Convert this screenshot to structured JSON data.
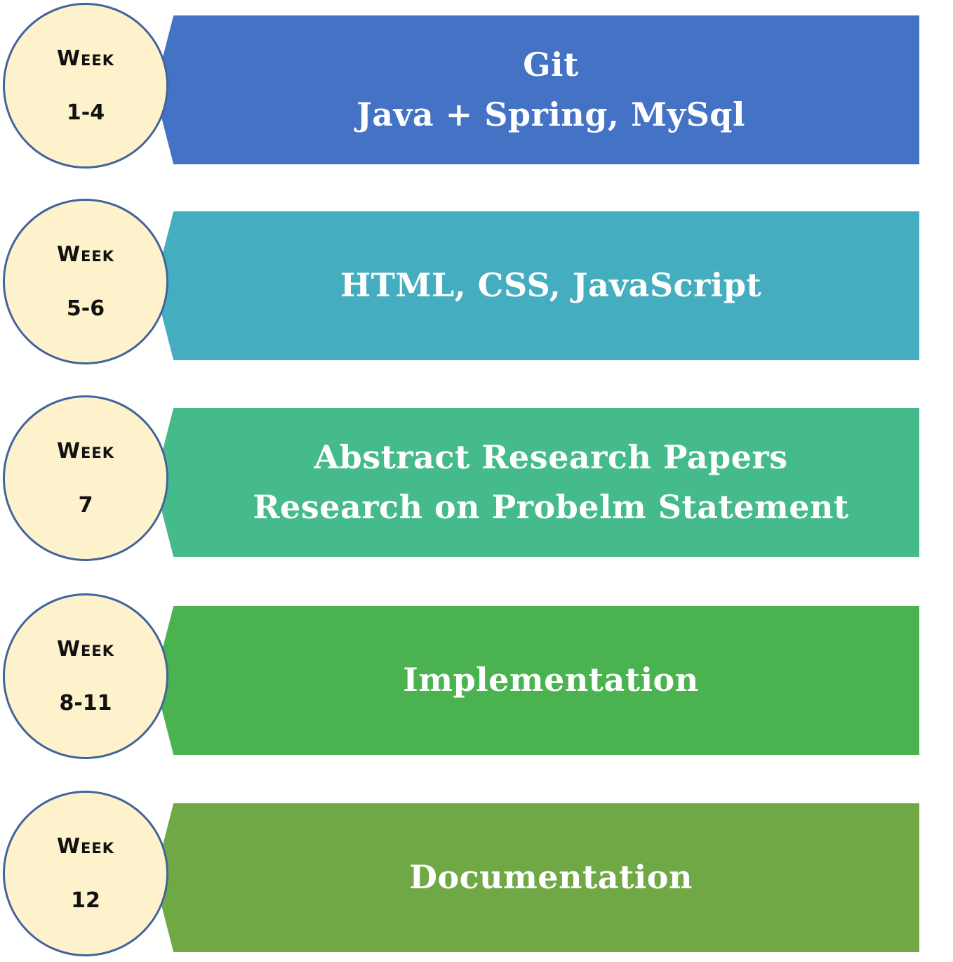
{
  "timeline": [
    {
      "label": "Week",
      "weeks": "1-4",
      "lines": [
        "Git",
        "Java + Spring, MySql"
      ],
      "color": "#4472c4"
    },
    {
      "label": "Week",
      "weeks": "5-6",
      "lines": [
        "HTML, CSS, JavaScript"
      ],
      "color": "#45adc0"
    },
    {
      "label": "Week",
      "weeks": "7",
      "lines": [
        "Abstract Research Papers",
        "Research on Probelm Statement"
      ],
      "color": "#45bb8b"
    },
    {
      "label": "Week",
      "weeks": "8-11",
      "lines": [
        "Implementation"
      ],
      "color": "#4ab350"
    },
    {
      "label": "Week",
      "weeks": "12",
      "lines": [
        "Documentation"
      ],
      "color": "#70a846"
    }
  ],
  "colors": {
    "badge_fill": "#fdf2cc",
    "badge_border": "#41649a"
  }
}
